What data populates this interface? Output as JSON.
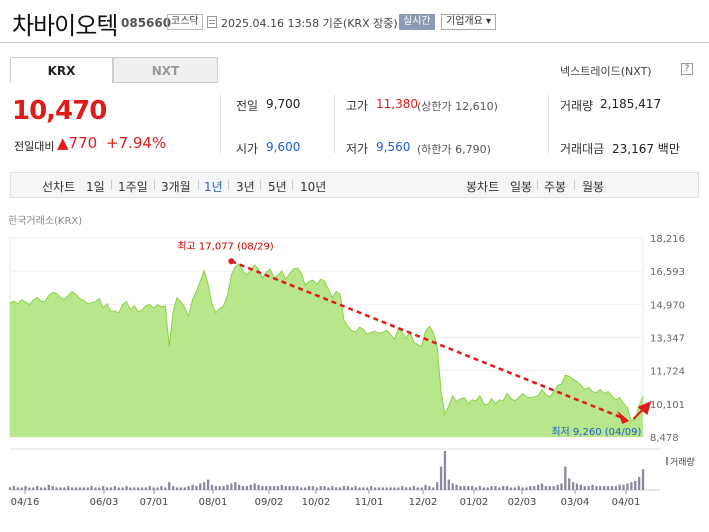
{
  "header": {
    "company_name": "차바이오텍",
    "stock_code": "085660",
    "market": "코스닥",
    "datetime": "2025.04.16 13:58  기준(KRX 장중)",
    "realtime_label": "실시간",
    "company_info_label": "기업개요 ▾"
  },
  "tabs": {
    "krx": "KRX",
    "nxt": "NXT",
    "nxt_link": "넥스트레이드(NXT)",
    "help": "?"
  },
  "price": {
    "current": "10,470",
    "change_label": "전일대비",
    "change_value": "▲770",
    "change_percent": "+7.94%"
  },
  "stats": {
    "prev_close_label": "전일",
    "prev_close": "9,700",
    "open_label": "시가",
    "open": "9,600",
    "high_label": "고가",
    "high": "11,380",
    "upper_limit": "(상한가 12,610)",
    "low_label": "저가",
    "low": "9,560",
    "lower_limit": "(하한가 6,790)",
    "volume_label": "거래량",
    "volume": "2,185,417",
    "amount_label": "거래대금",
    "amount": "23,167 백만"
  },
  "periods": {
    "line_label": "선차트",
    "line": [
      "1일",
      "1주일",
      "3개월",
      "1년",
      "3년",
      "5년",
      "10년"
    ],
    "active": "1년",
    "candle_label": "봉차트",
    "candle": [
      "일봉",
      "주봉",
      "월봉"
    ]
  },
  "chart_data": {
    "type": "area",
    "source_label": "한국거래소(KRX)",
    "y_ticks": [
      "18,216",
      "16,593",
      "14,970",
      "13,347",
      "11,724",
      "10,101",
      "8,478"
    ],
    "ylim": [
      8478,
      18216
    ],
    "x_ticks": [
      "04/16",
      "06/03",
      "07/01",
      "08/01",
      "09/02",
      "10/02",
      "11/01",
      "12/02",
      "01/02",
      "02/03",
      "03/04",
      "04/01"
    ],
    "high_annotation": "최고 17,077 (08/29)",
    "low_annotation": "최저 9,260 (04/09)",
    "volume_label": "거래량",
    "colors": {
      "fill": "#b8e68a",
      "line": "#7fca3c",
      "trend": "#e01b1b",
      "volume": "#8a8a9c"
    },
    "series": [
      {
        "values": [
          15050,
          15120,
          15000,
          15200,
          15080,
          14950,
          15180,
          15300,
          15120,
          15100,
          15400,
          15550,
          15500,
          15300,
          15200,
          15400,
          15600,
          15450,
          15250,
          15150,
          15000,
          15050,
          15100,
          15250,
          14800,
          15000,
          14600,
          14650,
          14550,
          14950,
          15100,
          14700,
          14900,
          14600,
          14700,
          14900,
          14950,
          14800,
          14950,
          14850,
          14900,
          12900,
          14600,
          15300,
          15100,
          14800,
          14400,
          15200,
          15600,
          16100,
          16600,
          15950,
          15000,
          14550,
          14750,
          14900,
          15400,
          16400,
          16800,
          16950,
          16600,
          16400,
          16650,
          16900,
          16700,
          16250,
          16550,
          16700,
          16250,
          16400,
          16600,
          16200,
          16450,
          16700,
          16750,
          16500,
          15900,
          16100,
          16150,
          15950,
          16200,
          16100,
          15700,
          15300,
          15600,
          15450,
          14200,
          13900,
          13700,
          13600,
          13850,
          13750,
          13500,
          13600,
          13650,
          13550,
          13600,
          13700,
          13500,
          13250,
          13800,
          13600,
          13300,
          13650,
          13100,
          13000,
          12900,
          13650,
          13900,
          13600,
          12900,
          10700,
          9600,
          10000,
          10500,
          10200,
          10350,
          10400,
          10100,
          10300,
          10250,
          10500,
          10100,
          10050,
          10350,
          10100,
          10300,
          10250,
          10600,
          10350,
          10250,
          10400,
          10600,
          10450,
          10400,
          10450,
          10500,
          10800,
          10550,
          10450,
          10700,
          11000,
          11050,
          11500,
          11450,
          11300,
          11200,
          11000,
          10800,
          10900,
          10700,
          10650,
          10800,
          10600,
          10700,
          10500,
          10300,
          10400,
          10100,
          9900,
          9260,
          9350,
          10000,
          10470
        ]
      }
    ],
    "volume": [
      2,
      3,
      2,
      2,
      3,
      2,
      2,
      3,
      2,
      2,
      4,
      3,
      2,
      2,
      2,
      3,
      2,
      2,
      2,
      2,
      2,
      3,
      2,
      2,
      3,
      2,
      2,
      3,
      2,
      2,
      3,
      2,
      2,
      2,
      2,
      2,
      3,
      2,
      2,
      3,
      2,
      6,
      3,
      2,
      2,
      2,
      3,
      4,
      3,
      5,
      6,
      8,
      4,
      3,
      3,
      3,
      4,
      5,
      6,
      4,
      3,
      3,
      4,
      5,
      4,
      3,
      3,
      3,
      3,
      3,
      4,
      3,
      3,
      3,
      3,
      2,
      2,
      3,
      3,
      2,
      3,
      3,
      2,
      3,
      2,
      2,
      3,
      3,
      2,
      3,
      2,
      2,
      2,
      3,
      2,
      2,
      2,
      2,
      2,
      2,
      2,
      3,
      2,
      2,
      3,
      2,
      2,
      4,
      3,
      2,
      6,
      18,
      30,
      8,
      5,
      4,
      3,
      3,
      3,
      3,
      2,
      3,
      2,
      2,
      3,
      3,
      2,
      3,
      3,
      2,
      2,
      3,
      2,
      2,
      3,
      3,
      4,
      5,
      3,
      3,
      3,
      4,
      5,
      18,
      9,
      6,
      5,
      4,
      3,
      3,
      4,
      3,
      3,
      3,
      3,
      3,
      3,
      4,
      4,
      5,
      6,
      7,
      10,
      16
    ]
  }
}
